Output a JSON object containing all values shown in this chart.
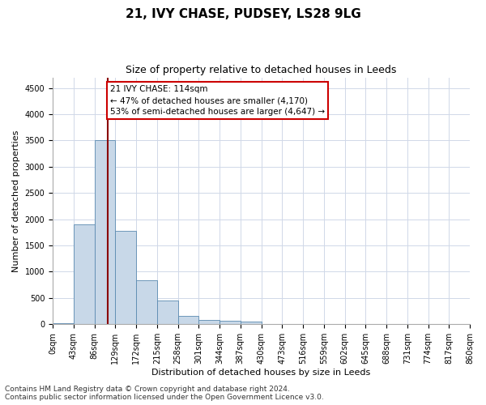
{
  "title1": "21, IVY CHASE, PUDSEY, LS28 9LG",
  "title2": "Size of property relative to detached houses in Leeds",
  "xlabel": "Distribution of detached houses by size in Leeds",
  "ylabel": "Number of detached properties",
  "bar_edges": [
    0,
    43,
    86,
    129,
    172,
    215,
    258,
    301,
    344,
    387,
    430,
    473,
    516,
    559,
    602,
    645,
    688,
    731,
    774,
    817,
    860
  ],
  "bar_heights": [
    15,
    1900,
    3500,
    1780,
    840,
    450,
    155,
    90,
    70,
    55,
    0,
    0,
    0,
    0,
    0,
    0,
    0,
    0,
    0,
    0
  ],
  "bar_color": "#c8d8e8",
  "bar_edge_color": "#5a8ab0",
  "grid_color": "#d0d8e8",
  "vline_x": 114,
  "vline_color": "#8b0000",
  "annotation_line1": "21 IVY CHASE: 114sqm",
  "annotation_line2": "← 47% of detached houses are smaller (4,170)",
  "annotation_line3": "53% of semi-detached houses are larger (4,647) →",
  "annotation_box_color": "#ffffff",
  "annotation_box_edge": "#cc0000",
  "ylim": [
    0,
    4700
  ],
  "yticks": [
    0,
    500,
    1000,
    1500,
    2000,
    2500,
    3000,
    3500,
    4000,
    4500
  ],
  "xtick_labels": [
    "0sqm",
    "43sqm",
    "86sqm",
    "129sqm",
    "172sqm",
    "215sqm",
    "258sqm",
    "301sqm",
    "344sqm",
    "387sqm",
    "430sqm",
    "473sqm",
    "516sqm",
    "559sqm",
    "602sqm",
    "645sqm",
    "688sqm",
    "731sqm",
    "774sqm",
    "817sqm",
    "860sqm"
  ],
  "footer1": "Contains HM Land Registry data © Crown copyright and database right 2024.",
  "footer2": "Contains public sector information licensed under the Open Government Licence v3.0.",
  "bg_color": "#ffffff",
  "title1_fontsize": 11,
  "title2_fontsize": 9,
  "axis_label_fontsize": 8,
  "tick_fontsize": 7,
  "footer_fontsize": 6.5,
  "annotation_fontsize": 7.5
}
